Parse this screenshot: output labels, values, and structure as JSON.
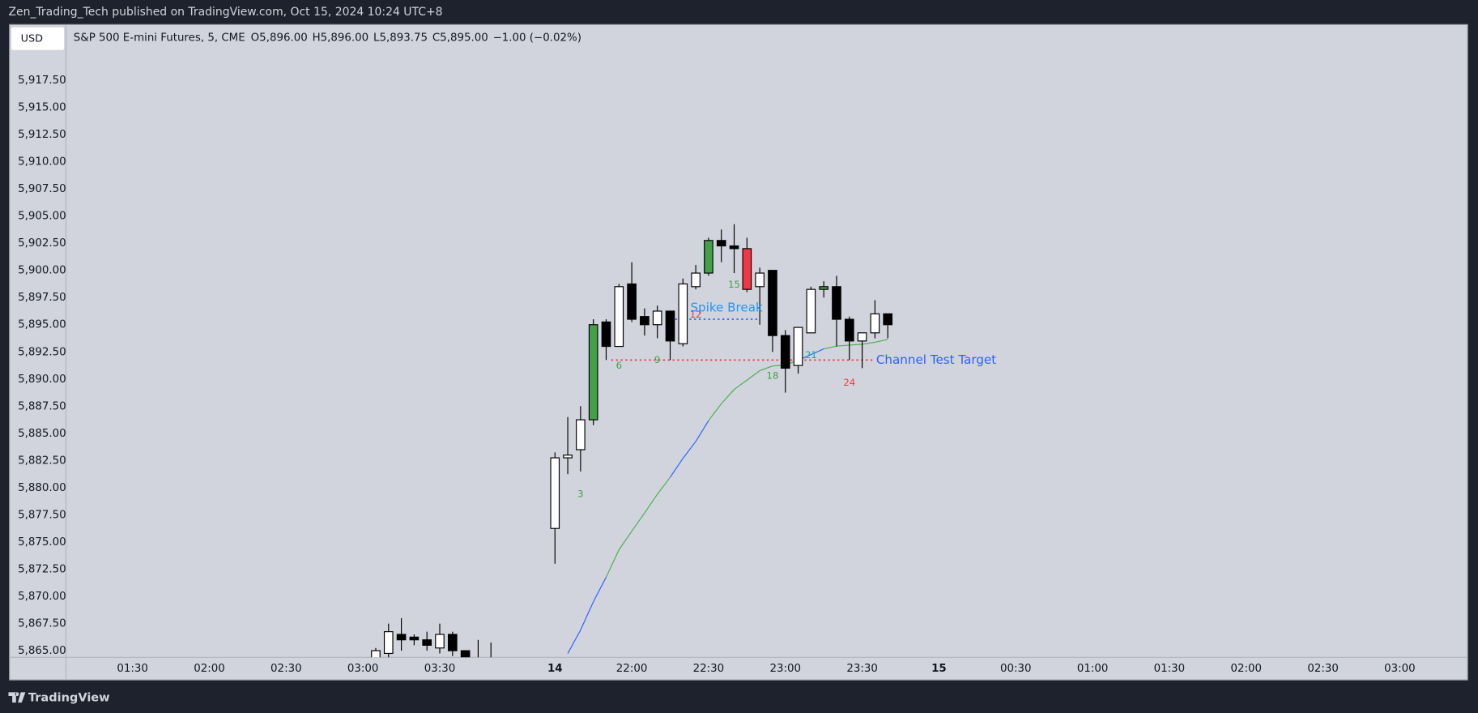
{
  "header": {
    "title": "Zen_Trading_Tech published on TradingView.com, Oct 15, 2024 10:24 UTC+8"
  },
  "footer": {
    "brand": "TradingView"
  },
  "chart_data": {
    "type": "candlestick",
    "currency": "USD",
    "symbol": "S&P 500 E-mini Futures, 5, CME",
    "ohlc_labels": [
      "O5,896.00",
      "H5,896.00",
      "L5,893.75",
      "C5,895.00",
      "−1.00 (−0.02%)"
    ],
    "ylim": [
      5864.39,
      5922.62
    ],
    "yticks": [
      {
        "value": 5865,
        "label": "5,865.00"
      },
      {
        "value": 5867.5,
        "label": "5,867.50"
      },
      {
        "value": 5870,
        "label": "5,870.00"
      },
      {
        "value": 5872.5,
        "label": "5,872.50"
      },
      {
        "value": 5875,
        "label": "5,875.00"
      },
      {
        "value": 5877.5,
        "label": "5,877.50"
      },
      {
        "value": 5880,
        "label": "5,880.00"
      },
      {
        "value": 5882.5,
        "label": "5,882.50"
      },
      {
        "value": 5885,
        "label": "5,885.00"
      },
      {
        "value": 5887.5,
        "label": "5,887.50"
      },
      {
        "value": 5890,
        "label": "5,890.00"
      },
      {
        "value": 5892.5,
        "label": "5,892.50"
      },
      {
        "value": 5895,
        "label": "5,895.00"
      },
      {
        "value": 5897.5,
        "label": "5,897.50"
      },
      {
        "value": 5900,
        "label": "5,900.00"
      },
      {
        "value": 5902.5,
        "label": "5,902.50"
      },
      {
        "value": 5905,
        "label": "5,905.00"
      },
      {
        "value": 5907.5,
        "label": "5,907.50"
      },
      {
        "value": 5910,
        "label": "5,910.00"
      },
      {
        "value": 5912.5,
        "label": "5,912.50"
      },
      {
        "value": 5915,
        "label": "5,915.00"
      },
      {
        "value": 5917.5,
        "label": "5,917.50"
      }
    ],
    "xlim": [
      -5.2,
      104.3
    ],
    "xticks": [
      {
        "value": 0,
        "label": "01:30"
      },
      {
        "value": 6,
        "label": "02:00"
      },
      {
        "value": 12,
        "label": "02:30"
      },
      {
        "value": 18,
        "label": "03:00"
      },
      {
        "value": 24,
        "label": "03:30"
      },
      {
        "value": 33,
        "label": "14"
      },
      {
        "value": 39,
        "label": "22:00"
      },
      {
        "value": 45,
        "label": "22:30"
      },
      {
        "value": 51,
        "label": "23:00"
      },
      {
        "value": 57,
        "label": "23:30"
      },
      {
        "value": 63,
        "label": "15"
      },
      {
        "value": 69,
        "label": "00:30"
      },
      {
        "value": 75,
        "label": "01:00"
      },
      {
        "value": 81,
        "label": "01:30"
      },
      {
        "value": 87,
        "label": "02:00"
      },
      {
        "value": 93,
        "label": "02:30"
      },
      {
        "value": 99,
        "label": "03:00"
      }
    ],
    "x": [
      19,
      20,
      21,
      22,
      23,
      24,
      25,
      26,
      27,
      28,
      33,
      34,
      35,
      36,
      37,
      38,
      39,
      40,
      41,
      42,
      43,
      44,
      45,
      46,
      47,
      48,
      49,
      50,
      51,
      52,
      53,
      54,
      55,
      56,
      57,
      58,
      59
    ],
    "open": [
      5864.0,
      5864.75,
      5866.5,
      5866.25,
      5866.0,
      5865.25,
      5866.5,
      5865.0,
      5864.0,
      5863.5,
      5876.25,
      5882.75,
      5883.5,
      5886.25,
      5895.25,
      5893.0,
      5898.75,
      5895.75,
      5895.0,
      5896.25,
      5893.25,
      5898.5,
      5899.75,
      5902.75,
      5902.25,
      5902.0,
      5898.5,
      5900.0,
      5894.0,
      5891.25,
      5894.25,
      5898.25,
      5898.5,
      5895.5,
      5893.5,
      5894.25,
      5896.0
    ],
    "high": [
      5865.25,
      5867.5,
      5868.0,
      5866.5,
      5866.75,
      5867.5,
      5866.75,
      5865.0,
      5866.0,
      5865.75,
      5883.25,
      5886.5,
      5887.5,
      5895.5,
      5895.5,
      5898.75,
      5900.75,
      5896.5,
      5896.75,
      5896.25,
      5899.25,
      5900.5,
      5903.0,
      5903.75,
      5904.25,
      5903.0,
      5900.25,
      5900.0,
      5894.5,
      5894.75,
      5898.5,
      5899.0,
      5899.5,
      5895.75,
      5894.25,
      5897.25,
      5896.0
    ],
    "low": [
      5863.5,
      5864.0,
      5865.0,
      5865.5,
      5865.0,
      5864.75,
      5864.5,
      5864.0,
      5863.0,
      5862.5,
      5873.0,
      5881.25,
      5881.5,
      5885.75,
      5891.75,
      5893.0,
      5895.25,
      5894.0,
      5893.75,
      5891.75,
      5893.0,
      5898.25,
      5899.5,
      5900.75,
      5899.75,
      5898.0,
      5895.0,
      5892.5,
      5888.75,
      5890.5,
      5894.25,
      5897.5,
      5893.0,
      5891.75,
      5891.0,
      5893.75,
      5893.75
    ],
    "close": [
      5865.0,
      5866.75,
      5866.0,
      5866.0,
      5865.5,
      5866.5,
      5865.0,
      5864.25,
      5863.5,
      5863.0,
      5882.75,
      5883.0,
      5886.25,
      5895.0,
      5893.0,
      5898.5,
      5895.5,
      5895.0,
      5896.25,
      5893.5,
      5898.75,
      5899.75,
      5902.75,
      5902.25,
      5902.0,
      5898.25,
      5899.75,
      5894.0,
      5891.0,
      5894.75,
      5898.25,
      5898.5,
      5895.5,
      5893.5,
      5894.25,
      5896.0,
      5895.0
    ],
    "colors": [
      "#ffffff",
      "#ffffff",
      "#000000",
      "#000000",
      "#000000",
      "#ffffff",
      "#000000",
      "#000000",
      "#000000",
      "#000000",
      "#ffffff",
      "#ffffff",
      "#ffffff",
      "#43a047",
      "#000000",
      "#ffffff",
      "#000000",
      "#000000",
      "#ffffff",
      "#000000",
      "#ffffff",
      "#ffffff",
      "#43a047",
      "#000000",
      "#000000",
      "#f23645",
      "#ffffff",
      "#000000",
      "#000000",
      "#ffffff",
      "#ffffff",
      "#43a047",
      "#000000",
      "#000000",
      "#ffffff",
      "#ffffff",
      "#000000"
    ],
    "ma": {
      "x": [
        34,
        35,
        36,
        37,
        38,
        39,
        40,
        41,
        42,
        43,
        44,
        45,
        46,
        47,
        48,
        49,
        50,
        51,
        52,
        53,
        54,
        55,
        56,
        57,
        58,
        59
      ],
      "values": [
        5864.74,
        5866.9,
        5869.5,
        5871.77,
        5874.28,
        5876.0,
        5877.67,
        5879.4,
        5880.96,
        5882.7,
        5884.26,
        5886.17,
        5887.73,
        5889.04,
        5889.9,
        5890.77,
        5891.2,
        5891.29,
        5891.73,
        5892.25,
        5892.77,
        5893.03,
        5893.12,
        5893.2,
        5893.38,
        5893.64
      ],
      "colors": [
        "#2962ff",
        "#2962ff",
        "#2962ff",
        "#2962ff",
        "#4caf50",
        "#4caf50",
        "#4caf50",
        "#4caf50",
        "#4caf50",
        "#2962ff",
        "#2962ff",
        "#2962ff",
        "#4caf50",
        "#4caf50",
        "#4caf50",
        "#4caf50",
        "#4caf50",
        "#4caf50",
        "#4caf50",
        "#2962ff",
        "#2962ff",
        "#4caf50",
        "#4caf50",
        "#4caf50",
        "#4caf50",
        "#4caf50"
      ]
    },
    "levels": [
      {
        "label": "Spike Break",
        "value": 5895.5,
        "x": [
          42.4,
          49
        ],
        "color": "#2962ff",
        "text_color": "#2196f3"
      },
      {
        "label": "Channel Test Target",
        "value": 5891.75,
        "x": [
          37.4,
          57.8
        ],
        "color": "#f23645",
        "text_color": "#2962ff"
      }
    ],
    "bar_labels": [
      {
        "label": "3",
        "x": 35,
        "y": 5879.4,
        "color": "#43a047"
      },
      {
        "label": "6",
        "x": 38,
        "y": 5891.2,
        "color": "#43a047"
      },
      {
        "label": "9",
        "x": 41,
        "y": 5891.75,
        "color": "#43a047"
      },
      {
        "label": "12",
        "x": 44,
        "y": 5895.9,
        "color": "#f23645"
      },
      {
        "label": "15",
        "x": 47,
        "y": 5898.67,
        "color": "#43a047"
      },
      {
        "label": "18",
        "x": 50,
        "y": 5890.3,
        "color": "#43a047"
      },
      {
        "label": "21",
        "x": 53,
        "y": 5892.2,
        "color": "#26a69a"
      },
      {
        "label": "24",
        "x": 56,
        "y": 5889.65,
        "color": "#f23645"
      }
    ]
  }
}
